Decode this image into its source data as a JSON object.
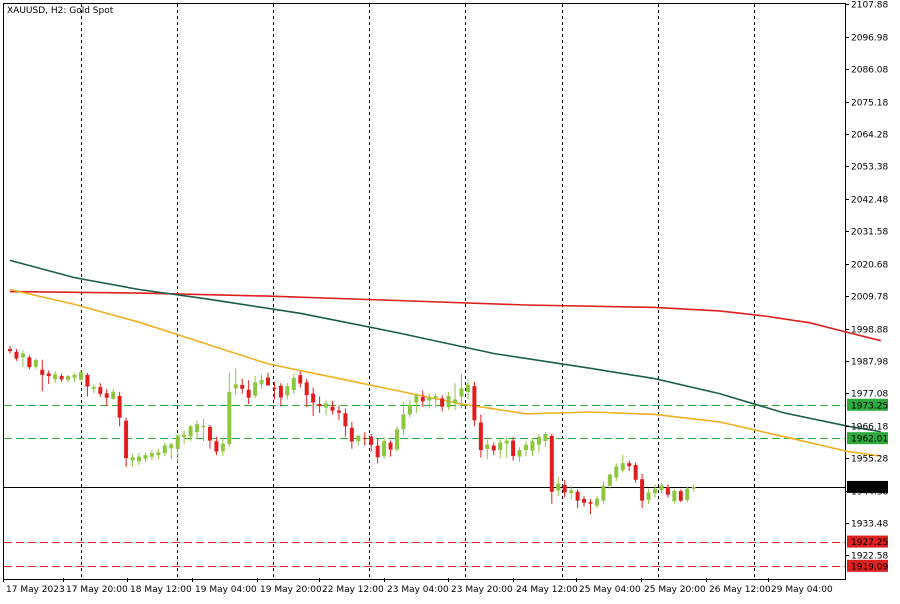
{
  "chart_title": "XAUUSD, H2:  Gold Spot",
  "chart_data": {
    "type": "candlestick",
    "symbol": "XAUUSD",
    "timeframe": "H2",
    "instrument": "Gold Spot",
    "ylim": [
      1915,
      2108
    ],
    "y_ticks": [
      2107.88,
      2096.98,
      2086.08,
      2075.18,
      2064.28,
      2053.38,
      2042.48,
      2031.58,
      2020.68,
      2009.78,
      1998.88,
      1987.98,
      1977.08,
      1966.18,
      1955.28,
      1944.38,
      1933.48,
      1922.58
    ],
    "x_labels": [
      "17 May 2023",
      "17 May 20:00",
      "18 May 12:00",
      "19 May 04:00",
      "19 May 20:00",
      "22 May 12:00",
      "23 May 04:00",
      "23 May 20:00",
      "24 May 12:00",
      "25 May 04:00",
      "25 May 20:00",
      "26 May 12:00",
      "29 May 04:00"
    ],
    "current_price": {
      "label": "1945.62",
      "value": 1945.62,
      "color": "#000000"
    },
    "levels": [
      {
        "label": "1973.25",
        "value": 1973.25,
        "color": "#2eaa3c",
        "style": "dashed"
      },
      {
        "label": "1962.01",
        "value": 1962.01,
        "color": "#2eaa3c",
        "style": "dashed"
      },
      {
        "label": "1927.25",
        "value": 1927.25,
        "color": "#dd2020",
        "style": "dashed"
      },
      {
        "label": "1919.09",
        "value": 1919.09,
        "color": "#dd2020",
        "style": "dashed"
      }
    ],
    "colors": {
      "bull": "#8dc63f",
      "bear": "#e01e1e",
      "ma_fast": "#f0b020",
      "ma_mid": "#1b5e4a",
      "ma_slow": "#dd2020",
      "vgrid": "#000000"
    },
    "moving_averages": [
      {
        "key": "ma_slow",
        "points": [
          [
            0,
            2011.3
          ],
          [
            20,
            2010.8
          ],
          [
            40,
            2009.8
          ],
          [
            60,
            2008.3
          ],
          [
            80,
            2006.8
          ],
          [
            100,
            2006.0
          ],
          [
            110,
            2004.8
          ],
          [
            117,
            2003.1
          ],
          [
            124,
            2000.8
          ],
          [
            130,
            1997.5
          ],
          [
            135,
            1994.8
          ]
        ]
      },
      {
        "key": "ma_mid",
        "points": [
          [
            0,
            2021.8
          ],
          [
            10,
            2016.0
          ],
          [
            20,
            2012.0
          ],
          [
            30,
            2009.0
          ],
          [
            45,
            2004.0
          ],
          [
            60,
            1997.5
          ],
          [
            75,
            1990.5
          ],
          [
            90,
            1985.5
          ],
          [
            100,
            1982.0
          ],
          [
            110,
            1977.0
          ],
          [
            120,
            1970.5
          ],
          [
            130,
            1966.0
          ],
          [
            135,
            1964.2
          ]
        ]
      },
      {
        "key": "ma_fast",
        "points": [
          [
            0,
            2012.0
          ],
          [
            10,
            2007.0
          ],
          [
            20,
            2001.0
          ],
          [
            30,
            1994.0
          ],
          [
            40,
            1987.0
          ],
          [
            50,
            1982.5
          ],
          [
            60,
            1978.0
          ],
          [
            70,
            1973.5
          ],
          [
            80,
            1970.2
          ],
          [
            90,
            1970.8
          ],
          [
            100,
            1970.0
          ],
          [
            110,
            1967.5
          ],
          [
            120,
            1962.5
          ],
          [
            130,
            1957.5
          ],
          [
            135,
            1956.0
          ]
        ]
      }
    ],
    "candles": [
      {
        "i": 0,
        "o": 1992.0,
        "h": 1993.0,
        "l": 1990.5,
        "c": 1991.3
      },
      {
        "i": 1,
        "o": 1991.0,
        "h": 1992.0,
        "l": 1988.0,
        "c": 1988.8
      },
      {
        "i": 2,
        "o": 1989.2,
        "h": 1991.5,
        "l": 1986.0,
        "c": 1990.5
      },
      {
        "i": 3,
        "o": 1989.2,
        "h": 1989.9,
        "l": 1985.2,
        "c": 1985.9
      },
      {
        "i": 4,
        "o": 1986.0,
        "h": 1988.9,
        "l": 1985.3,
        "c": 1988.3
      },
      {
        "i": 5,
        "o": 1985.0,
        "h": 1988.4,
        "l": 1977.8,
        "c": 1983.3
      },
      {
        "i": 6,
        "o": 1983.8,
        "h": 1984.8,
        "l": 1980.2,
        "c": 1982.9
      },
      {
        "i": 7,
        "o": 1981.8,
        "h": 1984.5,
        "l": 1980.5,
        "c": 1983.5
      },
      {
        "i": 8,
        "o": 1982.9,
        "h": 1983.8,
        "l": 1981.0,
        "c": 1981.8
      },
      {
        "i": 9,
        "o": 1981.6,
        "h": 1983.3,
        "l": 1980.8,
        "c": 1982.9
      },
      {
        "i": 10,
        "o": 1982.3,
        "h": 1984.0,
        "l": 1981.0,
        "c": 1983.3
      },
      {
        "i": 11,
        "o": 1981.7,
        "h": 1984.9,
        "l": 1981.0,
        "c": 1984.2
      },
      {
        "i": 12,
        "o": 1983.3,
        "h": 1984.0,
        "l": 1976.0,
        "c": 1979.4
      },
      {
        "i": 13,
        "o": 1978.6,
        "h": 1980.1,
        "l": 1977.2,
        "c": 1979.2
      },
      {
        "i": 14,
        "o": 1979.2,
        "h": 1980.5,
        "l": 1976.0,
        "c": 1976.9
      },
      {
        "i": 15,
        "o": 1977.1,
        "h": 1978.5,
        "l": 1972.8,
        "c": 1975.6
      },
      {
        "i": 16,
        "o": 1975.2,
        "h": 1978.6,
        "l": 1975.0,
        "c": 1977.6
      },
      {
        "i": 17,
        "o": 1976.2,
        "h": 1977.6,
        "l": 1966.0,
        "c": 1968.9
      },
      {
        "i": 18,
        "o": 1967.9,
        "h": 1968.9,
        "l": 1952.3,
        "c": 1955.3
      },
      {
        "i": 19,
        "o": 1954.5,
        "h": 1956.5,
        "l": 1952.5,
        "c": 1955.6
      },
      {
        "i": 20,
        "o": 1954.2,
        "h": 1957.0,
        "l": 1953.0,
        "c": 1955.8
      },
      {
        "i": 21,
        "o": 1955.1,
        "h": 1957.2,
        "l": 1954.0,
        "c": 1956.3
      },
      {
        "i": 22,
        "o": 1955.8,
        "h": 1958.0,
        "l": 1954.5,
        "c": 1957.0
      },
      {
        "i": 23,
        "o": 1956.3,
        "h": 1958.5,
        "l": 1955.0,
        "c": 1957.2
      },
      {
        "i": 24,
        "o": 1957.0,
        "h": 1960.5,
        "l": 1956.0,
        "c": 1959.6
      },
      {
        "i": 25,
        "o": 1958.6,
        "h": 1960.5,
        "l": 1955.0,
        "c": 1960.0
      },
      {
        "i": 26,
        "o": 1958.4,
        "h": 1963.2,
        "l": 1954.0,
        "c": 1962.9
      },
      {
        "i": 27,
        "o": 1962.4,
        "h": 1964.5,
        "l": 1960.0,
        "c": 1963.2
      },
      {
        "i": 28,
        "o": 1962.6,
        "h": 1966.5,
        "l": 1961.0,
        "c": 1966.0
      },
      {
        "i": 29,
        "o": 1964.1,
        "h": 1968.0,
        "l": 1962.0,
        "c": 1966.7
      },
      {
        "i": 30,
        "o": 1965.7,
        "h": 1968.5,
        "l": 1961.0,
        "c": 1966.2
      },
      {
        "i": 31,
        "o": 1965.8,
        "h": 1966.5,
        "l": 1958.5,
        "c": 1961.2
      },
      {
        "i": 32,
        "o": 1961.0,
        "h": 1962.5,
        "l": 1956.3,
        "c": 1957.5
      },
      {
        "i": 33,
        "o": 1957.6,
        "h": 1962.0,
        "l": 1956.0,
        "c": 1960.2
      },
      {
        "i": 34,
        "o": 1960.0,
        "h": 1984.0,
        "l": 1959.0,
        "c": 1977.6
      },
      {
        "i": 35,
        "o": 1978.8,
        "h": 1985.5,
        "l": 1976.5,
        "c": 1980.1
      },
      {
        "i": 36,
        "o": 1979.9,
        "h": 1982.0,
        "l": 1977.0,
        "c": 1978.6
      },
      {
        "i": 37,
        "o": 1978.3,
        "h": 1981.5,
        "l": 1973.5,
        "c": 1975.6
      },
      {
        "i": 38,
        "o": 1976.3,
        "h": 1983.0,
        "l": 1975.5,
        "c": 1980.8
      },
      {
        "i": 39,
        "o": 1980.3,
        "h": 1983.5,
        "l": 1978.5,
        "c": 1981.6
      },
      {
        "i": 40,
        "o": 1982.4,
        "h": 1984.0,
        "l": 1979.5,
        "c": 1979.8
      },
      {
        "i": 41,
        "o": 1979.0,
        "h": 1981.0,
        "l": 1975.0,
        "c": 1978.8
      },
      {
        "i": 42,
        "o": 1979.6,
        "h": 1980.5,
        "l": 1972.8,
        "c": 1975.7
      },
      {
        "i": 43,
        "o": 1976.4,
        "h": 1980.5,
        "l": 1975.0,
        "c": 1979.5
      },
      {
        "i": 44,
        "o": 1978.2,
        "h": 1983.5,
        "l": 1977.0,
        "c": 1982.3
      },
      {
        "i": 45,
        "o": 1983.2,
        "h": 1984.5,
        "l": 1979.0,
        "c": 1980.4
      },
      {
        "i": 46,
        "o": 1980.8,
        "h": 1982.0,
        "l": 1972.5,
        "c": 1976.5
      },
      {
        "i": 47,
        "o": 1977.0,
        "h": 1979.0,
        "l": 1969.5,
        "c": 1974.0
      },
      {
        "i": 48,
        "o": 1973.5,
        "h": 1976.0,
        "l": 1970.5,
        "c": 1972.8
      },
      {
        "i": 49,
        "o": 1972.3,
        "h": 1974.8,
        "l": 1969.8,
        "c": 1973.7
      },
      {
        "i": 50,
        "o": 1972.6,
        "h": 1974.5,
        "l": 1970.0,
        "c": 1971.3
      },
      {
        "i": 51,
        "o": 1971.3,
        "h": 1973.0,
        "l": 1968.0,
        "c": 1970.6
      },
      {
        "i": 52,
        "o": 1970.4,
        "h": 1972.0,
        "l": 1962.5,
        "c": 1966.0
      },
      {
        "i": 53,
        "o": 1965.5,
        "h": 1967.5,
        "l": 1958.5,
        "c": 1960.9
      },
      {
        "i": 54,
        "o": 1961.0,
        "h": 1963.0,
        "l": 1959.5,
        "c": 1962.9
      },
      {
        "i": 55,
        "o": 1962.1,
        "h": 1964.0,
        "l": 1959.5,
        "c": 1962.0
      },
      {
        "i": 56,
        "o": 1962.5,
        "h": 1963.5,
        "l": 1957.5,
        "c": 1959.8
      },
      {
        "i": 57,
        "o": 1959.5,
        "h": 1962.0,
        "l": 1953.5,
        "c": 1955.6
      },
      {
        "i": 58,
        "o": 1956.0,
        "h": 1962.5,
        "l": 1955.0,
        "c": 1961.0
      },
      {
        "i": 59,
        "o": 1960.5,
        "h": 1961.2,
        "l": 1955.8,
        "c": 1958.2
      },
      {
        "i": 60,
        "o": 1958.2,
        "h": 1966.0,
        "l": 1957.5,
        "c": 1965.0
      },
      {
        "i": 61,
        "o": 1965.0,
        "h": 1974.0,
        "l": 1963.0,
        "c": 1970.0
      },
      {
        "i": 62,
        "o": 1970.0,
        "h": 1975.0,
        "l": 1969.0,
        "c": 1973.2
      },
      {
        "i": 63,
        "o": 1974.0,
        "h": 1977.0,
        "l": 1970.5,
        "c": 1976.4
      },
      {
        "i": 64,
        "o": 1975.9,
        "h": 1978.0,
        "l": 1972.5,
        "c": 1974.4
      },
      {
        "i": 65,
        "o": 1974.7,
        "h": 1977.0,
        "l": 1972.0,
        "c": 1975.8
      },
      {
        "i": 66,
        "o": 1975.6,
        "h": 1977.0,
        "l": 1972.3,
        "c": 1976.2
      },
      {
        "i": 67,
        "o": 1975.4,
        "h": 1976.5,
        "l": 1971.0,
        "c": 1972.6
      },
      {
        "i": 68,
        "o": 1972.4,
        "h": 1977.5,
        "l": 1971.5,
        "c": 1976.2
      },
      {
        "i": 69,
        "o": 1973.8,
        "h": 1980.5,
        "l": 1971.5,
        "c": 1975.0
      },
      {
        "i": 70,
        "o": 1976.0,
        "h": 1983.5,
        "l": 1972.0,
        "c": 1978.8
      },
      {
        "i": 71,
        "o": 1977.5,
        "h": 1981.5,
        "l": 1975.0,
        "c": 1980.0
      },
      {
        "i": 72,
        "o": 1979.5,
        "h": 1981.0,
        "l": 1966.0,
        "c": 1968.0
      },
      {
        "i": 73,
        "o": 1967.3,
        "h": 1970.0,
        "l": 1955.5,
        "c": 1958.0
      },
      {
        "i": 74,
        "o": 1958.4,
        "h": 1961.5,
        "l": 1955.0,
        "c": 1959.9
      },
      {
        "i": 75,
        "o": 1959.5,
        "h": 1960.5,
        "l": 1956.3,
        "c": 1957.9
      },
      {
        "i": 76,
        "o": 1958.0,
        "h": 1962.0,
        "l": 1955.2,
        "c": 1960.6
      },
      {
        "i": 77,
        "o": 1960.2,
        "h": 1962.3,
        "l": 1955.5,
        "c": 1961.2
      },
      {
        "i": 78,
        "o": 1961.2,
        "h": 1962.5,
        "l": 1954.5,
        "c": 1956.0
      },
      {
        "i": 79,
        "o": 1955.8,
        "h": 1959.0,
        "l": 1954.0,
        "c": 1958.0
      },
      {
        "i": 80,
        "o": 1958.0,
        "h": 1961.0,
        "l": 1956.0,
        "c": 1959.8
      },
      {
        "i": 81,
        "o": 1957.8,
        "h": 1962.0,
        "l": 1956.0,
        "c": 1961.0
      },
      {
        "i": 82,
        "o": 1959.8,
        "h": 1963.5,
        "l": 1957.0,
        "c": 1962.5
      },
      {
        "i": 83,
        "o": 1961.1,
        "h": 1964.0,
        "l": 1959.0,
        "c": 1963.4
      },
      {
        "i": 84,
        "o": 1962.8,
        "h": 1963.5,
        "l": 1940.0,
        "c": 1944.0
      },
      {
        "i": 85,
        "o": 1944.4,
        "h": 1949.0,
        "l": 1942.5,
        "c": 1946.7
      },
      {
        "i": 86,
        "o": 1946.3,
        "h": 1948.0,
        "l": 1942.0,
        "c": 1943.8
      },
      {
        "i": 87,
        "o": 1943.6,
        "h": 1946.0,
        "l": 1941.5,
        "c": 1944.5
      },
      {
        "i": 88,
        "o": 1944.0,
        "h": 1944.8,
        "l": 1938.5,
        "c": 1941.0
      },
      {
        "i": 89,
        "o": 1941.6,
        "h": 1942.5,
        "l": 1939.0,
        "c": 1940.3
      },
      {
        "i": 90,
        "o": 1940.5,
        "h": 1941.5,
        "l": 1936.5,
        "c": 1940.0
      },
      {
        "i": 91,
        "o": 1939.3,
        "h": 1942.5,
        "l": 1938.5,
        "c": 1941.7
      },
      {
        "i": 92,
        "o": 1941.0,
        "h": 1947.5,
        "l": 1940.0,
        "c": 1946.0
      },
      {
        "i": 93,
        "o": 1946.0,
        "h": 1950.0,
        "l": 1945.0,
        "c": 1949.8
      },
      {
        "i": 94,
        "o": 1948.8,
        "h": 1953.5,
        "l": 1947.5,
        "c": 1952.5
      },
      {
        "i": 95,
        "o": 1951.2,
        "h": 1956.5,
        "l": 1950.5,
        "c": 1953.6
      },
      {
        "i": 96,
        "o": 1953.6,
        "h": 1954.5,
        "l": 1951.0,
        "c": 1952.6
      },
      {
        "i": 97,
        "o": 1953.0,
        "h": 1953.8,
        "l": 1947.0,
        "c": 1948.0
      },
      {
        "i": 98,
        "o": 1948.2,
        "h": 1950.0,
        "l": 1938.5,
        "c": 1941.0
      },
      {
        "i": 99,
        "o": 1941.3,
        "h": 1945.0,
        "l": 1940.0,
        "c": 1943.8
      },
      {
        "i": 100,
        "o": 1943.5,
        "h": 1946.5,
        "l": 1942.0,
        "c": 1945.0
      },
      {
        "i": 101,
        "o": 1944.6,
        "h": 1947.0,
        "l": 1943.5,
        "c": 1946.1
      },
      {
        "i": 102,
        "o": 1945.6,
        "h": 1946.5,
        "l": 1942.0,
        "c": 1943.0
      },
      {
        "i": 103,
        "o": 1940.8,
        "h": 1944.8,
        "l": 1940.0,
        "c": 1944.3
      },
      {
        "i": 104,
        "o": 1944.2,
        "h": 1944.8,
        "l": 1940.5,
        "c": 1941.0
      },
      {
        "i": 105,
        "o": 1941.3,
        "h": 1945.8,
        "l": 1940.5,
        "c": 1945.0
      },
      {
        "i": 106,
        "o": 1945.0,
        "h": 1946.5,
        "l": 1944.0,
        "c": 1945.6
      }
    ]
  }
}
